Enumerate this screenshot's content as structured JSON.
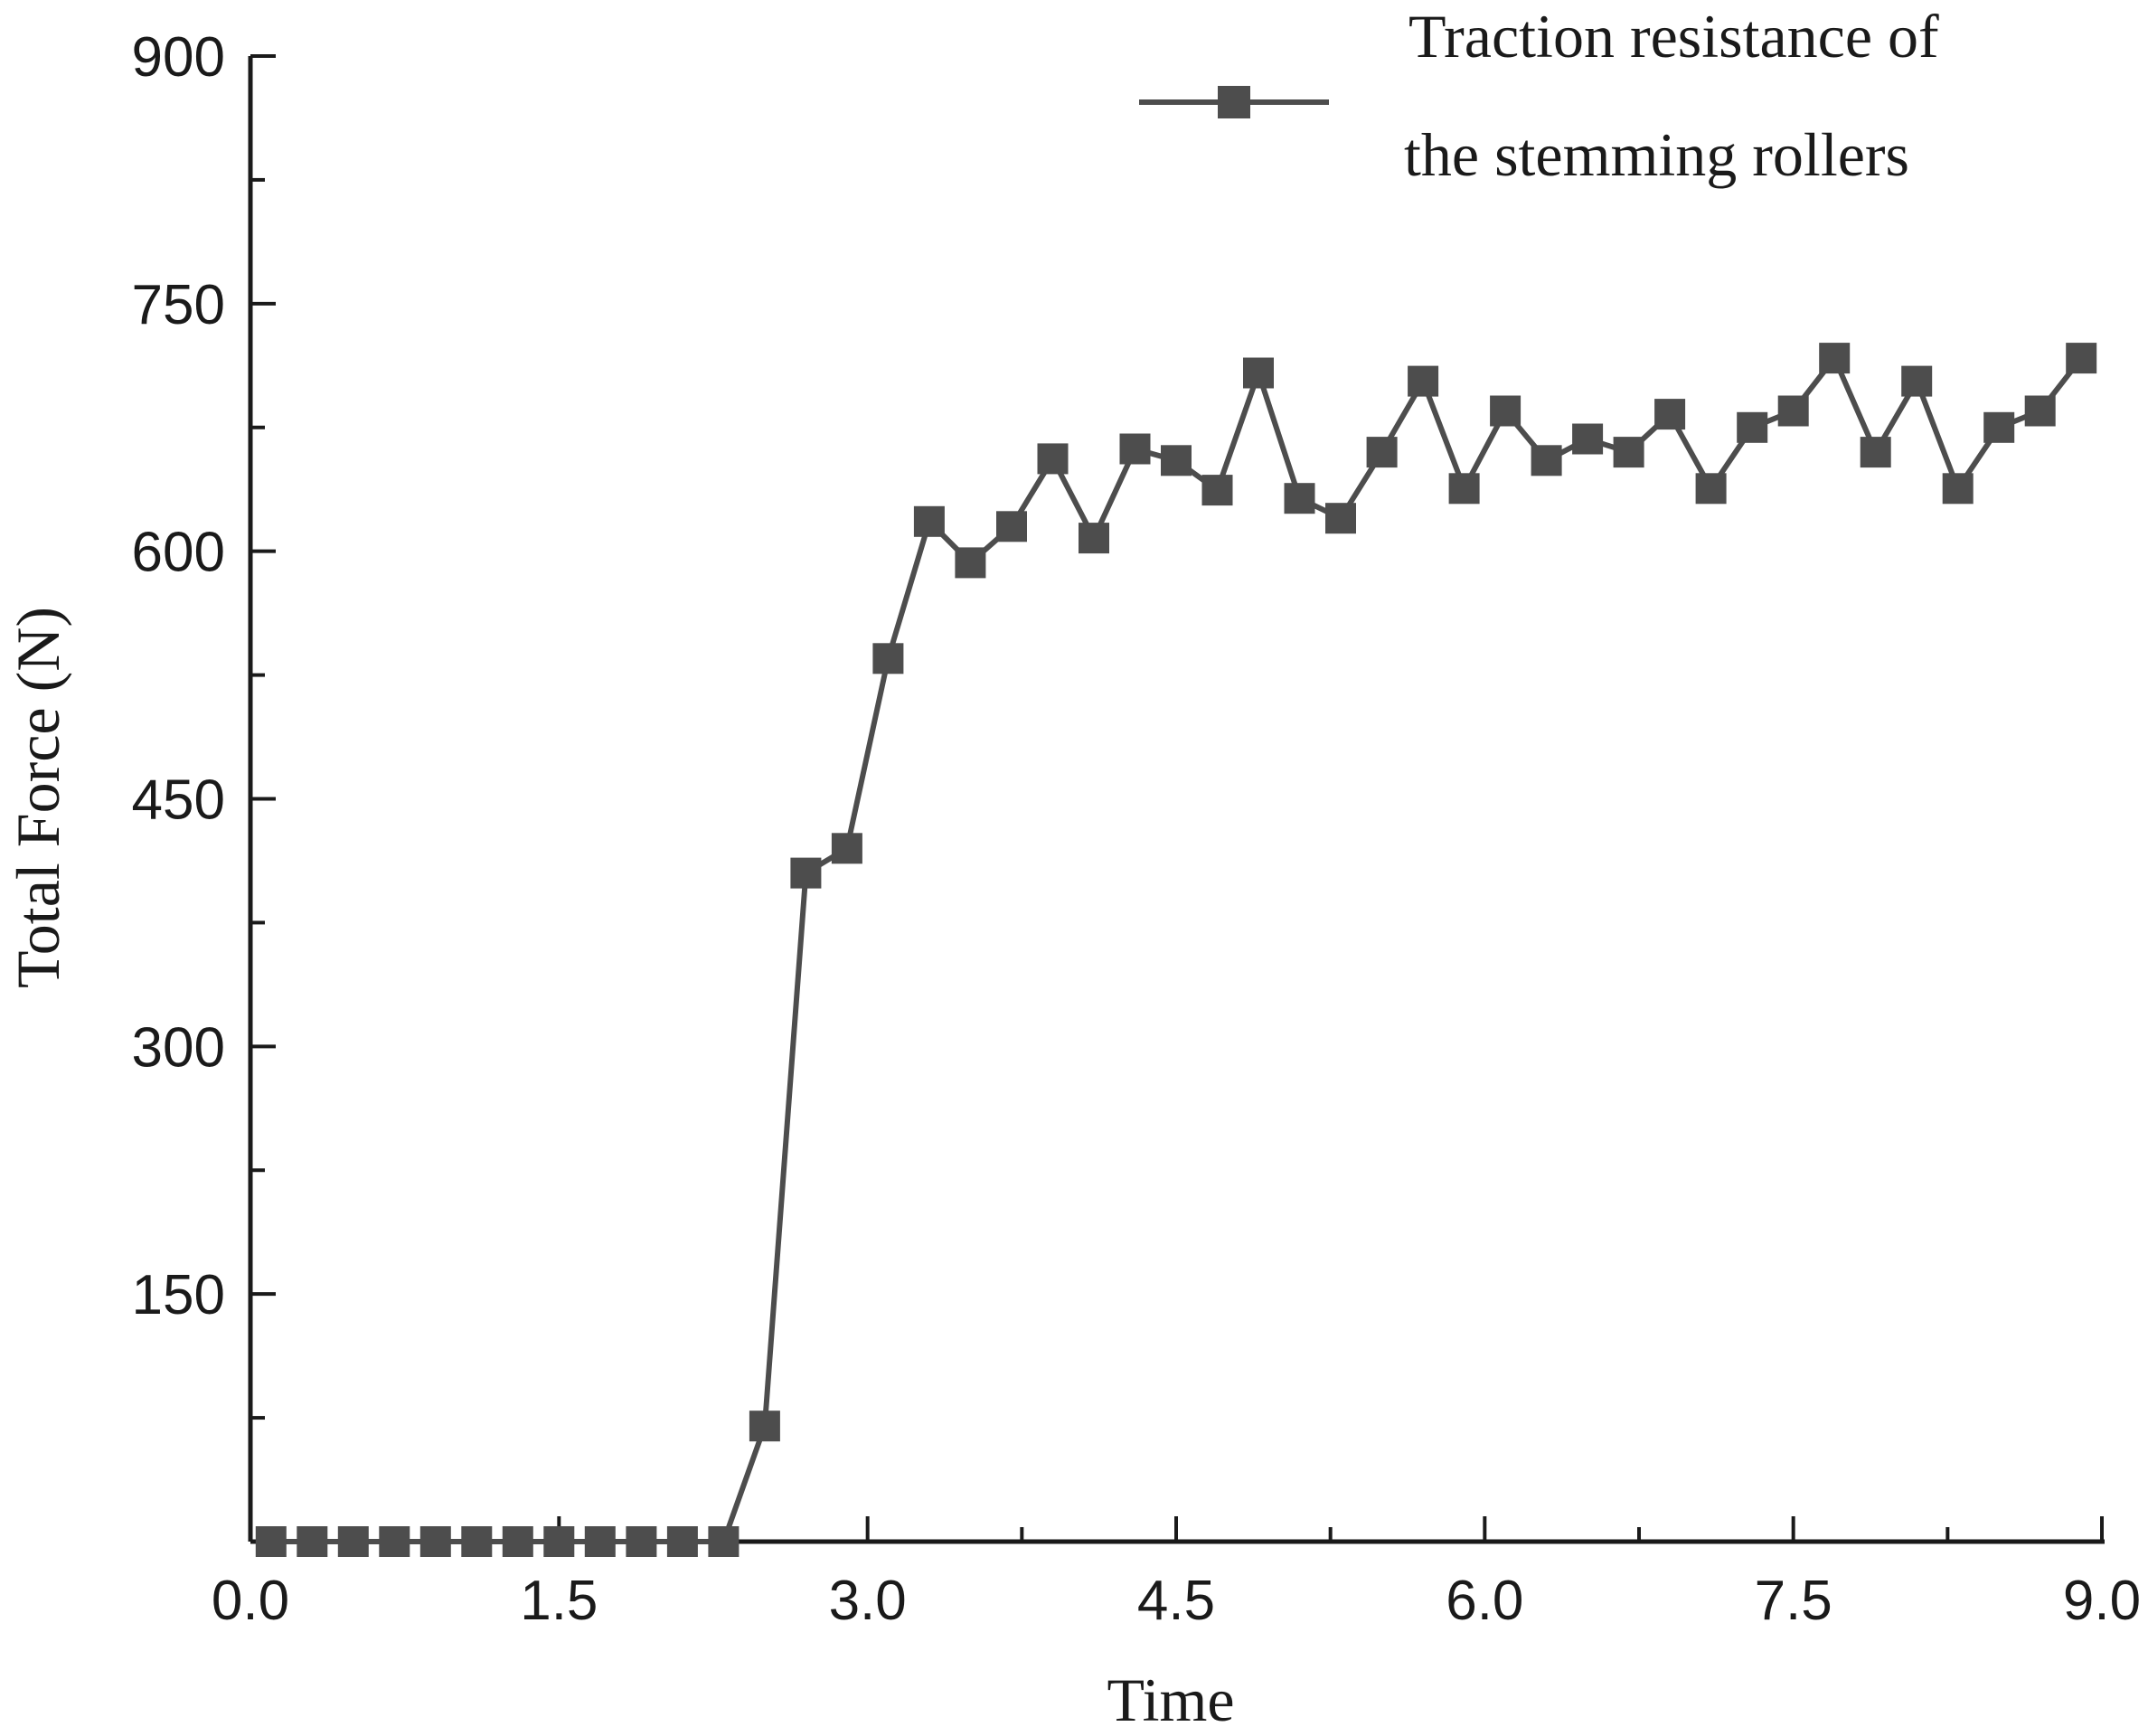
{
  "chart_data": {
    "type": "line",
    "title": "",
    "xlabel": "Time",
    "ylabel": "Total Force (N)",
    "xlim": [
      0.0,
      9.0
    ],
    "ylim": [
      0,
      900
    ],
    "xticks": [
      "0.0",
      "1.5",
      "3.0",
      "4.5",
      "6.0",
      "7.5",
      "9.0"
    ],
    "yticks": [
      "150",
      "300",
      "450",
      "600",
      "750",
      "900"
    ],
    "grid": false,
    "legend_position": "top-right",
    "series": [
      {
        "name": "Traction resistance of the stemming rollers",
        "legend_lines": [
          "Traction resistance of",
          "the stemming rollers"
        ],
        "color": "#4d4d4d",
        "marker": "square",
        "x": [
          0.1,
          0.3,
          0.5,
          0.7,
          0.9,
          1.1,
          1.3,
          1.5,
          1.7,
          1.9,
          2.1,
          2.3,
          2.5,
          2.7,
          2.9,
          3.1,
          3.3,
          3.5,
          3.7,
          3.9,
          4.1,
          4.3,
          4.5,
          4.7,
          4.9,
          5.1,
          5.3,
          5.5,
          5.7,
          5.9,
          6.1,
          6.3,
          6.5,
          6.7,
          6.9,
          7.1,
          7.3,
          7.5,
          7.7,
          7.9,
          8.1,
          8.3,
          8.5,
          8.7,
          8.9
        ],
        "y": [
          0,
          0,
          0,
          0,
          0,
          0,
          0,
          0,
          0,
          0,
          0,
          0,
          70,
          405,
          420,
          535,
          618,
          593,
          615,
          656,
          608,
          662,
          655,
          637,
          708,
          632,
          620,
          660,
          703,
          638,
          685,
          655,
          668,
          660,
          683,
          638,
          675,
          685,
          717,
          660,
          703,
          638,
          675,
          685,
          717
        ]
      }
    ]
  }
}
